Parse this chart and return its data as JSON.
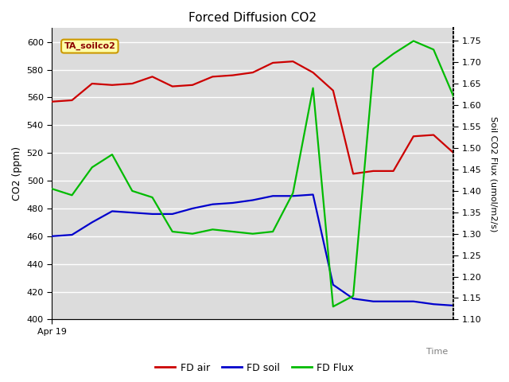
{
  "title": "Forced Diffusion CO2",
  "ylabel_left": "CO2 (ppm)",
  "ylabel_right": "Soil CO2 Flux (umol/m2/s)",
  "x_start_label": "Apr 19",
  "x_end_label": "Time",
  "ylim_left": [
    400,
    610
  ],
  "ylim_right": [
    1.1,
    1.78
  ],
  "annotation_text": "TA_soilco2",
  "plot_bg_color": "#dcdcdc",
  "fig_bg_color": "#ffffff",
  "fd_air": {
    "color": "#cc0000",
    "label": "FD air",
    "x": [
      0,
      1,
      2,
      3,
      4,
      5,
      6,
      7,
      8,
      9,
      10,
      11,
      12,
      13,
      14,
      15,
      16,
      17,
      18,
      19,
      20
    ],
    "y": [
      557,
      558,
      570,
      569,
      570,
      575,
      568,
      569,
      575,
      576,
      578,
      585,
      586,
      578,
      565,
      505,
      507,
      507,
      532,
      533,
      520
    ]
  },
  "fd_soil": {
    "color": "#0000cc",
    "label": "FD soil",
    "x": [
      0,
      1,
      2,
      3,
      4,
      5,
      6,
      7,
      8,
      9,
      10,
      11,
      12,
      13,
      14,
      15,
      16,
      17,
      18,
      19,
      20
    ],
    "y": [
      460,
      461,
      470,
      478,
      477,
      476,
      476,
      480,
      483,
      484,
      486,
      489,
      489,
      490,
      425,
      415,
      413,
      413,
      413,
      411,
      410
    ]
  },
  "fd_flux": {
    "color": "#00bb00",
    "label": "FD Flux",
    "x": [
      0,
      1,
      2,
      3,
      4,
      5,
      6,
      7,
      8,
      9,
      10,
      11,
      12,
      13,
      14,
      15,
      16,
      17,
      18,
      19,
      20
    ],
    "y": [
      1.405,
      1.39,
      1.455,
      1.485,
      1.4,
      1.385,
      1.305,
      1.3,
      1.31,
      1.305,
      1.3,
      1.305,
      1.395,
      1.64,
      1.13,
      1.155,
      1.685,
      1.72,
      1.75,
      1.73,
      1.62
    ]
  },
  "yticks_left": [
    400,
    420,
    440,
    460,
    480,
    500,
    520,
    540,
    560,
    580,
    600
  ],
  "yticks_right": [
    1.1,
    1.15,
    1.2,
    1.25,
    1.3,
    1.35,
    1.4,
    1.45,
    1.5,
    1.55,
    1.6,
    1.65,
    1.7,
    1.75
  ],
  "grid_color": "#ffffff"
}
